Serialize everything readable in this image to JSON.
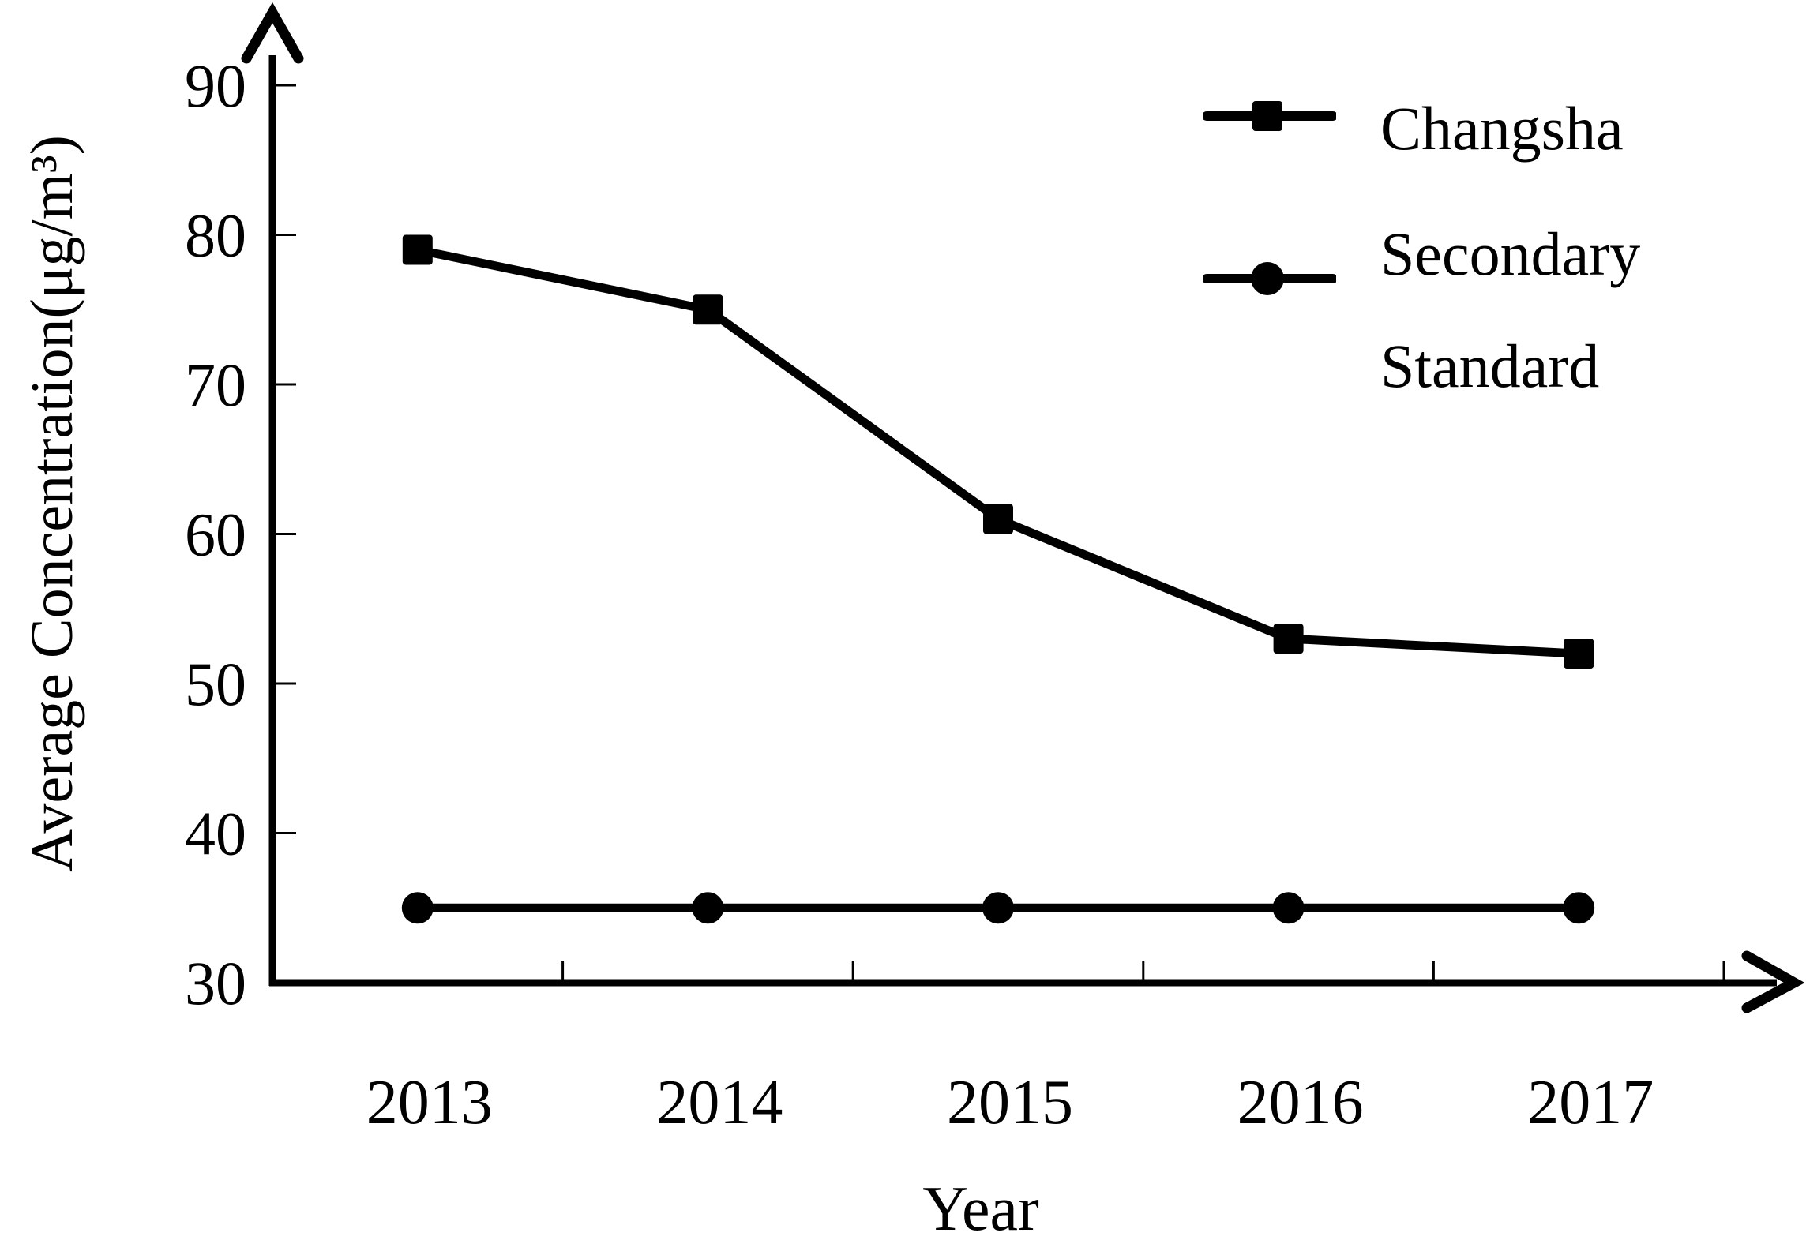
{
  "chart_data": {
    "type": "line",
    "title": "",
    "xlabel": "Year",
    "ylabel": "Average Concentration(μg/m³)",
    "categories": [
      "2013",
      "2014",
      "2015",
      "2016",
      "2017"
    ],
    "series": [
      {
        "name": "Changsha",
        "marker": "square",
        "values": [
          79,
          75,
          61,
          53,
          52
        ]
      },
      {
        "name": "Secondary Standard",
        "marker": "circle",
        "values": [
          35,
          35,
          35,
          35,
          35
        ]
      }
    ],
    "ylim": [
      30,
      90
    ],
    "yticks": [
      30,
      40,
      50,
      60,
      70,
      80,
      90
    ],
    "grid": false,
    "legend_position": "top-right",
    "legend": [
      {
        "marker": "square",
        "lines": [
          "Changsha",
          ""
        ]
      },
      {
        "marker": "circle",
        "lines": [
          "Secondary",
          "Standard"
        ]
      }
    ],
    "colors": {
      "ink": "#000000",
      "background": "#ffffff"
    }
  }
}
